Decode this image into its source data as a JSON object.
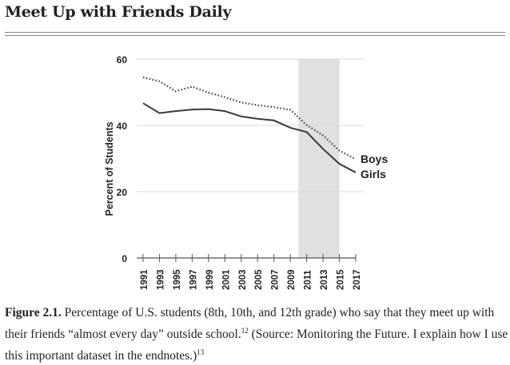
{
  "chart_data": {
    "type": "line",
    "title": "Meet Up with Friends Daily",
    "xlabel": "",
    "ylabel": "Percent of Students",
    "ylim": [
      0,
      60
    ],
    "yticks": [
      "0",
      "20",
      "40",
      "60"
    ],
    "x": [
      "1991",
      "1993",
      "1995",
      "1997",
      "1999",
      "2001",
      "2003",
      "2005",
      "2007",
      "2009",
      "2011",
      "2013",
      "2015",
      "2017"
    ],
    "xlim": [
      1991,
      2017
    ],
    "grid": true,
    "shaded_range": [
      2010,
      2015
    ],
    "series": [
      {
        "name": "Boys",
        "style": "dotted",
        "values": [
          54.5,
          53.3,
          50.3,
          51.7,
          49.9,
          48.5,
          46.9,
          46.1,
          45.5,
          44.7,
          40.1,
          37.0,
          32.4,
          29.8
        ]
      },
      {
        "name": "Girls",
        "style": "solid",
        "values": [
          46.7,
          43.7,
          44.3,
          44.8,
          44.9,
          44.3,
          42.7,
          42.0,
          41.5,
          39.3,
          38.0,
          32.9,
          28.4,
          25.8
        ]
      }
    ]
  },
  "caption": {
    "label": "Figure 2.1.",
    "text1": " Percentage of U.S. students (8th, 10th, and 12th grade) who say that they meet up with their friends “almost every day” outside school.",
    "ref1": "12",
    "text2": " (Source: Monitoring the Future. I explain how I use this important dataset in the endnotes.)",
    "ref2": "13"
  },
  "colors": {
    "line": "#3a3a3a",
    "shade": "#e0e0e2",
    "grid": "#d8d8d8"
  }
}
